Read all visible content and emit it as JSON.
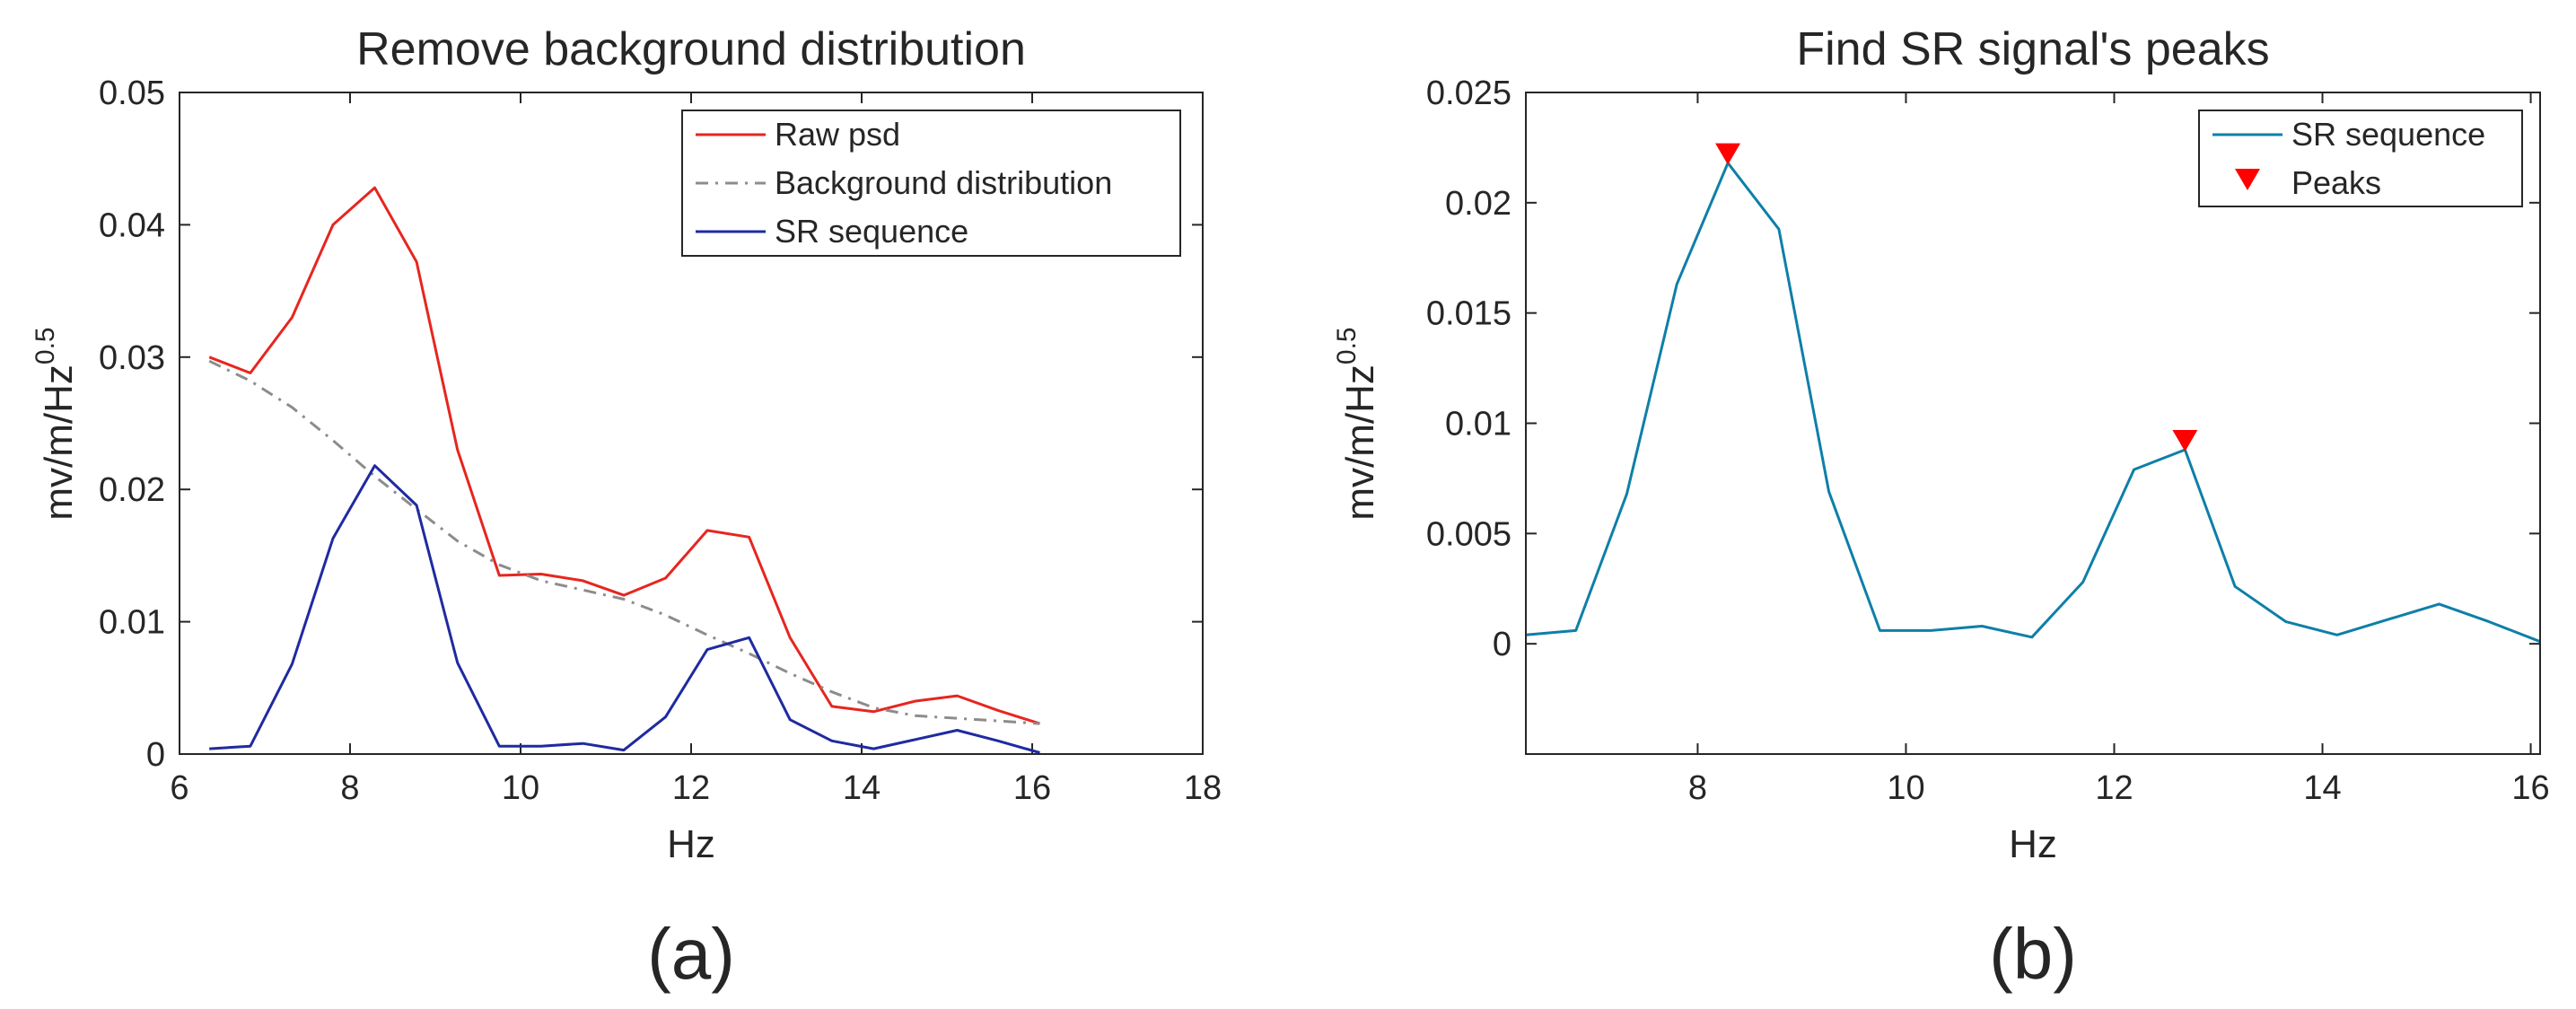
{
  "chart_data": [
    {
      "type": "line",
      "title": "Remove background distribution",
      "xlabel": "Hz",
      "ylabel": "mv/m/Hz",
      "ylabel_exponent": "0.5",
      "xlim": [
        6,
        18
      ],
      "ylim": [
        0,
        0.05
      ],
      "xticks": [
        6,
        8,
        10,
        12,
        14,
        16,
        18
      ],
      "xtick_labels": [
        "6",
        "8",
        "10",
        "12",
        "14",
        "16",
        "18"
      ],
      "yticks": [
        0,
        0.01,
        0.02,
        0.03,
        0.04,
        0.05
      ],
      "ytick_labels": [
        "0",
        "0.01",
        "0.02",
        "0.03",
        "0.04",
        "0.05"
      ],
      "legend_position": "top-right",
      "grid": false,
      "series": [
        {
          "name": "Raw psd",
          "color": "#e6261f",
          "dash": "solid",
          "x": [
            6.35,
            6.83,
            7.32,
            7.8,
            8.29,
            8.78,
            9.26,
            9.75,
            10.24,
            10.73,
            11.21,
            11.7,
            12.19,
            12.68,
            13.16,
            13.65,
            14.14,
            14.63,
            15.12,
            15.6,
            16.09
          ],
          "y": [
            0.03,
            0.0288,
            0.033,
            0.04,
            0.0428,
            0.0372,
            0.023,
            0.0135,
            0.0136,
            0.0131,
            0.012,
            0.0133,
            0.0169,
            0.0164,
            0.0088,
            0.0036,
            0.0032,
            0.004,
            0.0044,
            0.0033,
            0.0023
          ]
        },
        {
          "name": "Background distribution",
          "color": "#8c8c8c",
          "dash": "dashdot",
          "x": [
            6.35,
            6.83,
            7.32,
            7.8,
            8.29,
            8.78,
            9.26,
            9.75,
            10.24,
            10.73,
            11.21,
            11.7,
            12.19,
            12.68,
            13.16,
            13.65,
            14.14,
            14.63,
            15.12,
            15.6,
            16.09
          ],
          "y": [
            0.0297,
            0.0282,
            0.0262,
            0.0237,
            0.021,
            0.0185,
            0.0161,
            0.0143,
            0.0131,
            0.0124,
            0.0117,
            0.0105,
            0.009,
            0.0076,
            0.0061,
            0.0047,
            0.0035,
            0.0029,
            0.0027,
            0.0025,
            0.0023
          ]
        },
        {
          "name": "SR sequence",
          "color": "#1f2aa0",
          "dash": "solid",
          "x": [
            6.35,
            6.83,
            7.32,
            7.8,
            8.29,
            8.78,
            9.26,
            9.75,
            10.24,
            10.73,
            11.21,
            11.7,
            12.19,
            12.68,
            13.16,
            13.65,
            14.14,
            14.63,
            15.12,
            15.6,
            16.09
          ],
          "y": [
            0.0004,
            0.0006,
            0.0068,
            0.0163,
            0.0218,
            0.0188,
            0.0069,
            0.0006,
            0.0006,
            0.0008,
            0.0003,
            0.0028,
            0.0079,
            0.0088,
            0.0026,
            0.001,
            0.0004,
            0.0011,
            0.0018,
            0.001,
            0.0001
          ]
        }
      ]
    },
    {
      "type": "line",
      "title": "Find SR signal's peaks",
      "xlabel": "Hz",
      "ylabel": "mv/m/Hz",
      "ylabel_exponent": "0.5",
      "xlim": [
        6.35,
        16.09
      ],
      "ylim": [
        -0.005,
        0.025
      ],
      "xticks": [
        8,
        10,
        12,
        14,
        16
      ],
      "xtick_labels": [
        "8",
        "10",
        "12",
        "14",
        "16"
      ],
      "yticks": [
        0,
        0.005,
        0.01,
        0.015,
        0.02,
        0.025
      ],
      "ytick_labels": [
        "0",
        "0.005",
        "0.01",
        "0.015",
        "0.02",
        "0.025"
      ],
      "legend_position": "top-right",
      "grid": false,
      "series": [
        {
          "name": "SR sequence",
          "color": "#0e7fa8",
          "dash": "solid",
          "x": [
            6.35,
            6.83,
            7.32,
            7.8,
            8.29,
            8.78,
            9.26,
            9.75,
            10.24,
            10.73,
            11.21,
            11.7,
            12.19,
            12.68,
            13.16,
            13.65,
            14.14,
            14.63,
            15.12,
            15.6,
            16.09
          ],
          "y": [
            0.0004,
            0.0006,
            0.0068,
            0.0163,
            0.0218,
            0.0188,
            0.0069,
            0.0006,
            0.0006,
            0.0008,
            0.0003,
            0.0028,
            0.0079,
            0.0088,
            0.0026,
            0.001,
            0.0004,
            0.0011,
            0.0018,
            0.001,
            0.0001
          ]
        }
      ],
      "markers": {
        "name": "Peaks",
        "color": "#ff0000",
        "shape": "triangle-down",
        "x": [
          8.29,
          12.68
        ],
        "y": [
          0.0218,
          0.0088
        ]
      }
    }
  ],
  "panel_labels": [
    "(a)",
    "(b)"
  ]
}
